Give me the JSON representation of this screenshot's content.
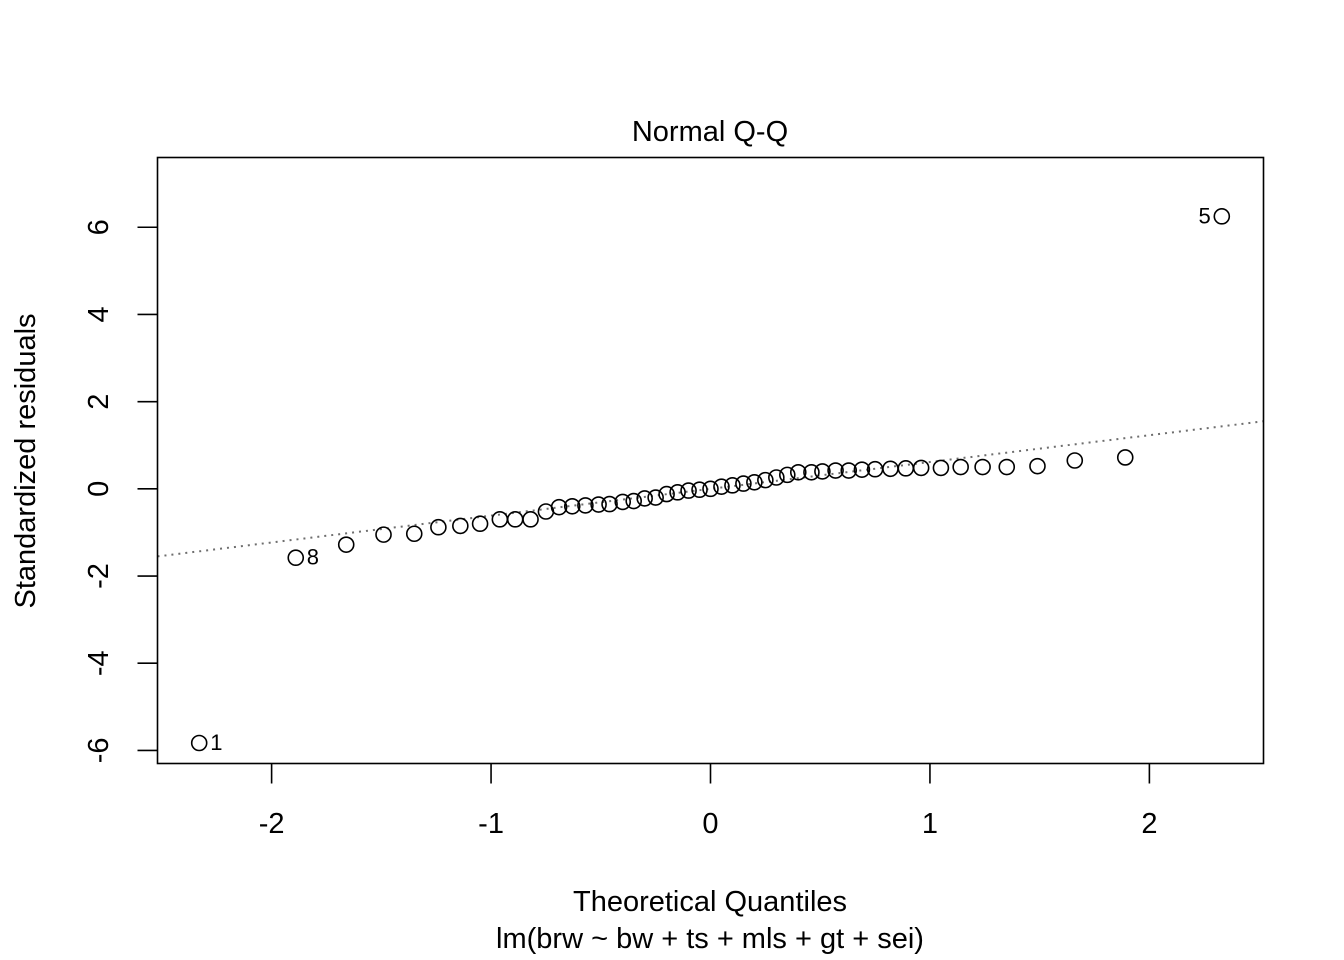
{
  "chart_data": {
    "type": "scatter",
    "title": "Normal Q-Q",
    "xlabel": "Theoretical Quantiles",
    "subtitle": "lm(brw ~ bw + ts + mls + gt + sei)",
    "ylabel": "Standardized residuals",
    "xlim": [
      -2.52,
      2.52
    ],
    "ylim": [
      -6.3,
      7.6
    ],
    "x_ticks": [
      -2,
      -1,
      0,
      1,
      2
    ],
    "y_ticks": [
      -6,
      -4,
      -2,
      0,
      2,
      4,
      6
    ],
    "reference_line": {
      "style": "dotted",
      "color": "#6e6e6e",
      "x": [
        -2.52,
        2.52
      ],
      "y": [
        -1.55,
        1.55
      ]
    },
    "points": [
      {
        "x": -2.33,
        "y": -5.83,
        "label": "1"
      },
      {
        "x": -1.89,
        "y": -1.58,
        "label": "8"
      },
      {
        "x": -1.66,
        "y": -1.28
      },
      {
        "x": -1.49,
        "y": -1.05
      },
      {
        "x": -1.35,
        "y": -1.03
      },
      {
        "x": -1.24,
        "y": -0.88
      },
      {
        "x": -1.14,
        "y": -0.85
      },
      {
        "x": -1.05,
        "y": -0.8
      },
      {
        "x": -0.96,
        "y": -0.7
      },
      {
        "x": -0.89,
        "y": -0.7
      },
      {
        "x": -0.82,
        "y": -0.7
      },
      {
        "x": -0.75,
        "y": -0.52
      },
      {
        "x": -0.69,
        "y": -0.42
      },
      {
        "x": -0.63,
        "y": -0.4
      },
      {
        "x": -0.57,
        "y": -0.38
      },
      {
        "x": -0.51,
        "y": -0.36
      },
      {
        "x": -0.46,
        "y": -0.35
      },
      {
        "x": -0.4,
        "y": -0.3
      },
      {
        "x": -0.35,
        "y": -0.28
      },
      {
        "x": -0.3,
        "y": -0.22
      },
      {
        "x": -0.25,
        "y": -0.2
      },
      {
        "x": -0.2,
        "y": -0.12
      },
      {
        "x": -0.15,
        "y": -0.08
      },
      {
        "x": -0.1,
        "y": -0.04
      },
      {
        "x": -0.05,
        "y": -0.02
      },
      {
        "x": 0.0,
        "y": 0.0
      },
      {
        "x": 0.05,
        "y": 0.05
      },
      {
        "x": 0.1,
        "y": 0.08
      },
      {
        "x": 0.15,
        "y": 0.12
      },
      {
        "x": 0.2,
        "y": 0.15
      },
      {
        "x": 0.25,
        "y": 0.2
      },
      {
        "x": 0.3,
        "y": 0.26
      },
      {
        "x": 0.35,
        "y": 0.32
      },
      {
        "x": 0.4,
        "y": 0.38
      },
      {
        "x": 0.46,
        "y": 0.38
      },
      {
        "x": 0.51,
        "y": 0.4
      },
      {
        "x": 0.57,
        "y": 0.42
      },
      {
        "x": 0.63,
        "y": 0.42
      },
      {
        "x": 0.69,
        "y": 0.44
      },
      {
        "x": 0.75,
        "y": 0.45
      },
      {
        "x": 0.82,
        "y": 0.46
      },
      {
        "x": 0.89,
        "y": 0.47
      },
      {
        "x": 0.96,
        "y": 0.48
      },
      {
        "x": 1.05,
        "y": 0.48
      },
      {
        "x": 1.14,
        "y": 0.5
      },
      {
        "x": 1.24,
        "y": 0.5
      },
      {
        "x": 1.35,
        "y": 0.5
      },
      {
        "x": 1.49,
        "y": 0.52
      },
      {
        "x": 1.66,
        "y": 0.65
      },
      {
        "x": 1.89,
        "y": 0.72
      },
      {
        "x": 2.33,
        "y": 6.25,
        "label": "5"
      }
    ]
  }
}
